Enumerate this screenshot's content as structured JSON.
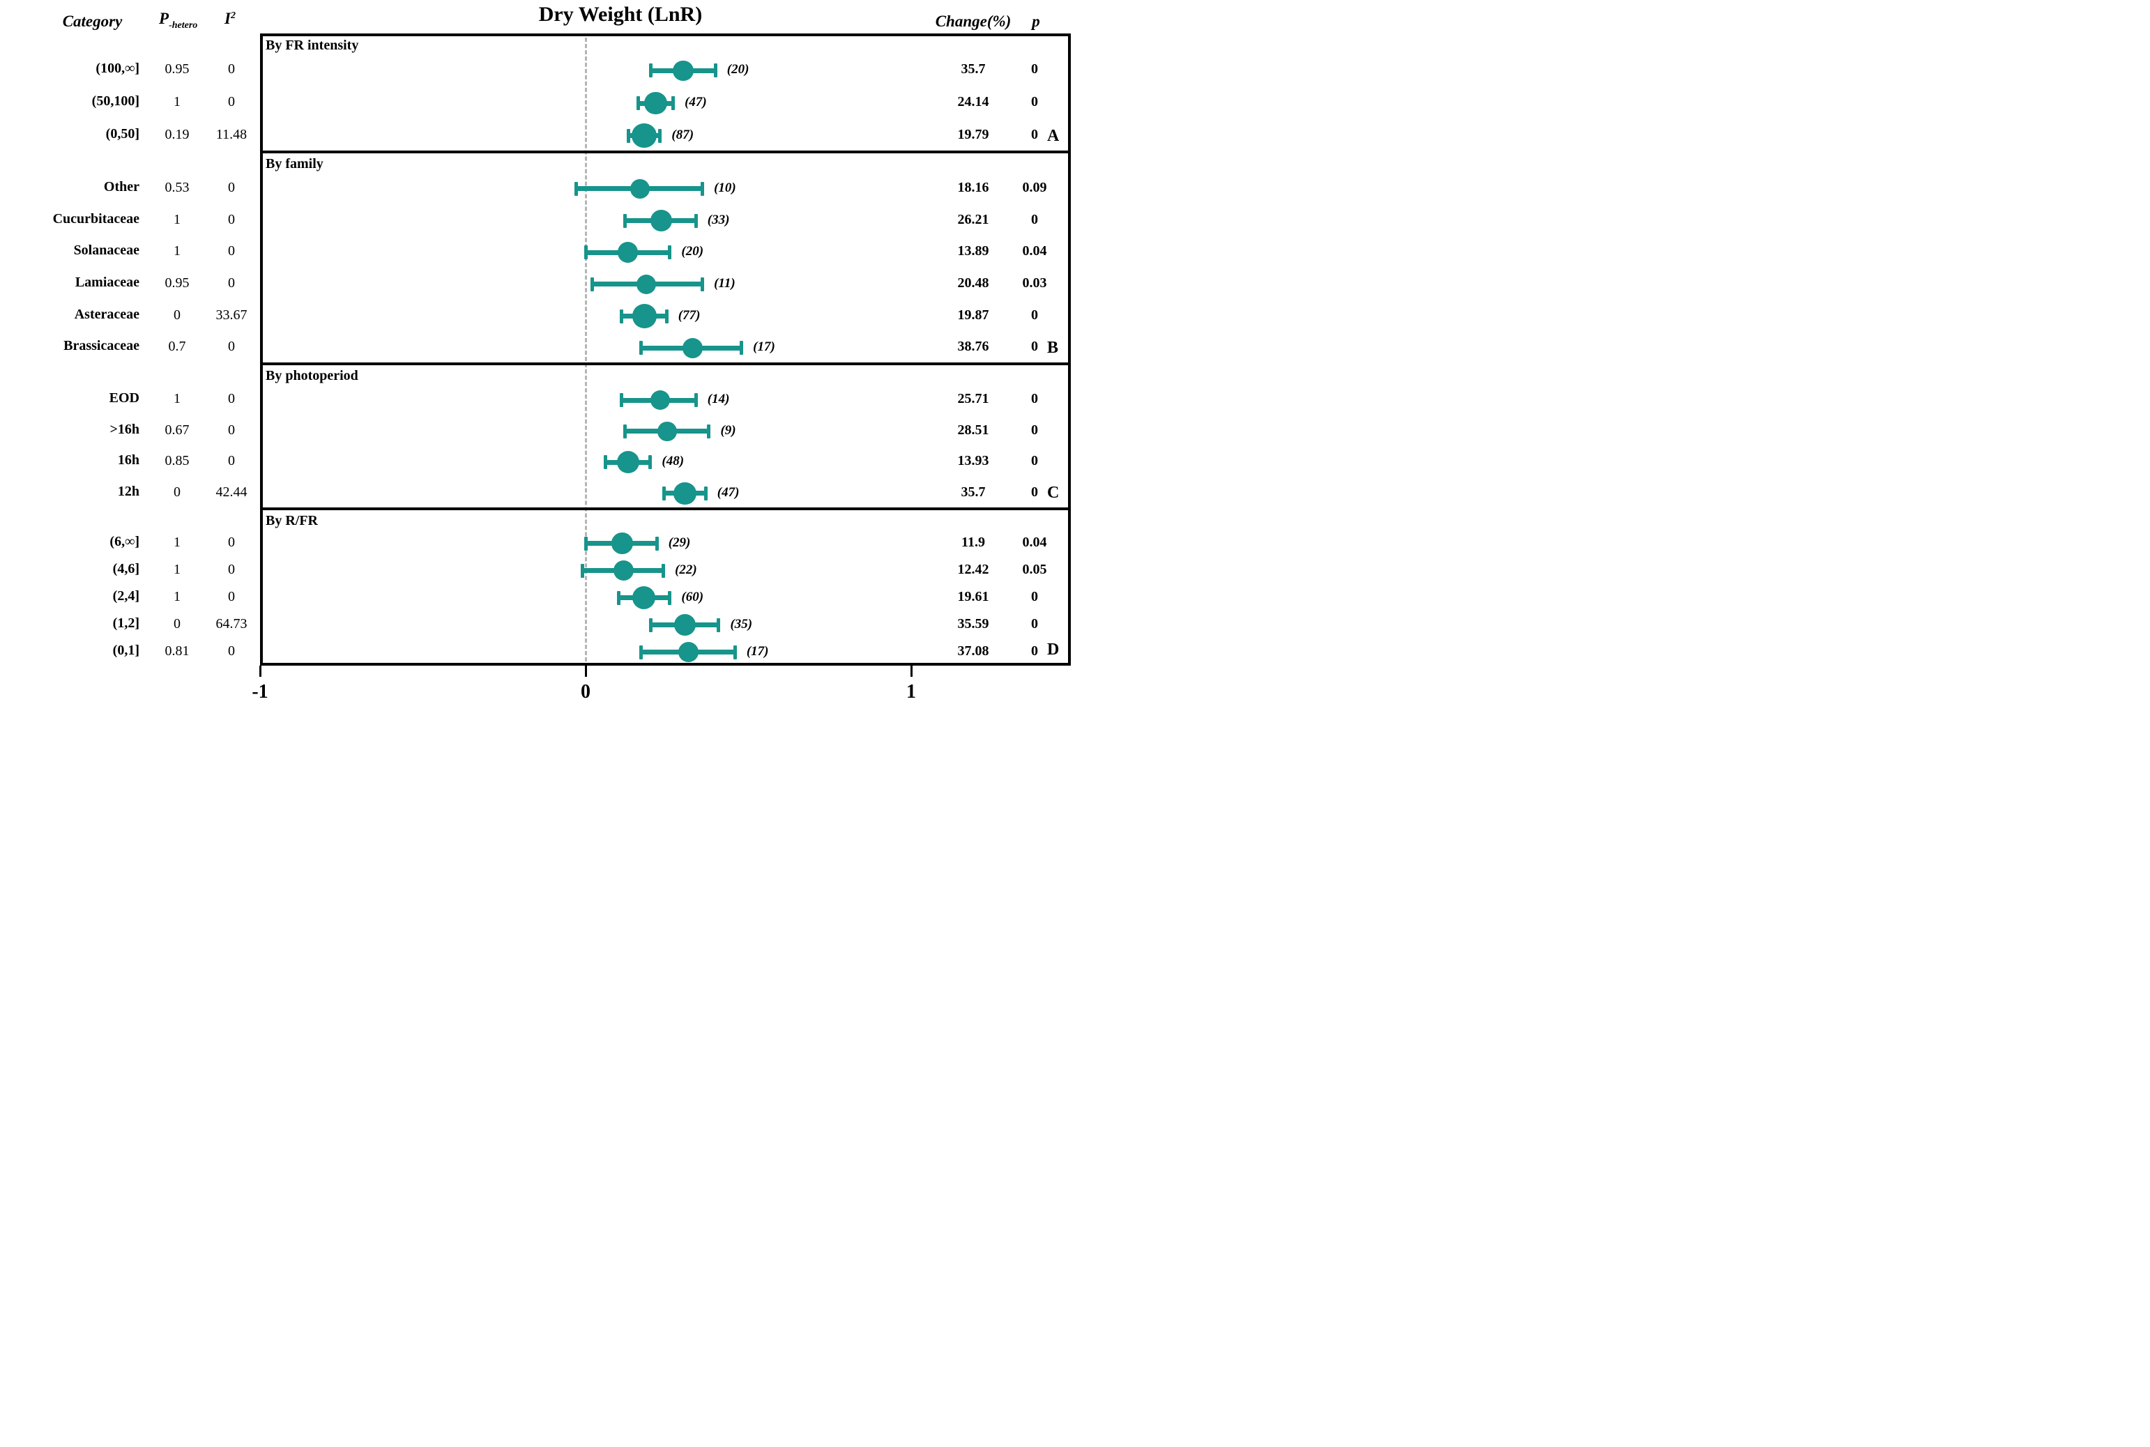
{
  "chart_data": {
    "type": "scatter",
    "variant": "forest-plot",
    "title": "Dry Weight (LnR)",
    "columns": {
      "category": "Category",
      "p_hetero_main": "P",
      "p_hetero_sub": "-hetero",
      "i2_main": "I",
      "i2_sup": "2",
      "change": "Change(%)",
      "p": "p"
    },
    "axis": {
      "xmin": -1,
      "xmax": 1.5,
      "tick_values": [
        -1,
        0,
        1
      ],
      "tick_labels": [
        "-1",
        "0",
        "1"
      ],
      "zero_reference_line": "dashed"
    },
    "marker_color": "#17948b",
    "zero_line_color": "#b5b5b5",
    "panels": [
      {
        "letter": "A",
        "section": "By FR intensity",
        "rows": [
          {
            "category": "(100,∞]",
            "p_hetero": "0.95",
            "i2": "0",
            "n": 20,
            "estimate": 0.3,
            "ci_lo": 0.2,
            "ci_hi": 0.4,
            "change": "35.7",
            "p": "0"
          },
          {
            "category": "(50,100]",
            "p_hetero": "1",
            "i2": "0",
            "n": 47,
            "estimate": 0.215,
            "ci_lo": 0.16,
            "ci_hi": 0.27,
            "change": "24.14",
            "p": "0"
          },
          {
            "category": "(0,50]",
            "p_hetero": "0.19",
            "i2": "11.48",
            "n": 87,
            "estimate": 0.18,
            "ci_lo": 0.13,
            "ci_hi": 0.23,
            "change": "19.79",
            "p": "0"
          }
        ]
      },
      {
        "letter": "B",
        "section": "By family",
        "rows": [
          {
            "category": "Other",
            "p_hetero": "0.53",
            "i2": "0",
            "n": 10,
            "estimate": 0.167,
            "ci_lo": -0.03,
            "ci_hi": 0.36,
            "change": "18.16",
            "p": "0.09"
          },
          {
            "category": "Cucurbitaceae",
            "p_hetero": "1",
            "i2": "0",
            "n": 33,
            "estimate": 0.233,
            "ci_lo": 0.12,
            "ci_hi": 0.34,
            "change": "26.21",
            "p": "0"
          },
          {
            "category": "Solanaceae",
            "p_hetero": "1",
            "i2": "0",
            "n": 20,
            "estimate": 0.13,
            "ci_lo": 0.0,
            "ci_hi": 0.26,
            "change": "13.89",
            "p": "0.04"
          },
          {
            "category": "Lamiaceae",
            "p_hetero": "0.95",
            "i2": "0",
            "n": 11,
            "estimate": 0.186,
            "ci_lo": 0.02,
            "ci_hi": 0.36,
            "change": "20.48",
            "p": "0.03"
          },
          {
            "category": "Asteraceae",
            "p_hetero": "0",
            "i2": "33.67",
            "n": 77,
            "estimate": 0.181,
            "ci_lo": 0.11,
            "ci_hi": 0.25,
            "change": "19.87",
            "p": "0"
          },
          {
            "category": "Brassicaceae",
            "p_hetero": "0.7",
            "i2": "0",
            "n": 17,
            "estimate": 0.328,
            "ci_lo": 0.17,
            "ci_hi": 0.48,
            "change": "38.76",
            "p": "0"
          }
        ]
      },
      {
        "letter": "C",
        "section": "By photoperiod",
        "rows": [
          {
            "category": "EOD",
            "p_hetero": "1",
            "i2": "0",
            "n": 14,
            "estimate": 0.229,
            "ci_lo": 0.11,
            "ci_hi": 0.34,
            "change": "25.71",
            "p": "0"
          },
          {
            "category": ">16h",
            "p_hetero": "0.67",
            "i2": "0",
            "n": 9,
            "estimate": 0.251,
            "ci_lo": 0.12,
            "ci_hi": 0.38,
            "change": "28.51",
            "p": "0"
          },
          {
            "category": "16h",
            "p_hetero": "0.85",
            "i2": "0",
            "n": 48,
            "estimate": 0.13,
            "ci_lo": 0.06,
            "ci_hi": 0.2,
            "change": "13.93",
            "p": "0"
          },
          {
            "category": "12h",
            "p_hetero": "0",
            "i2": "42.44",
            "n": 47,
            "estimate": 0.305,
            "ci_lo": 0.24,
            "ci_hi": 0.37,
            "change": "35.7",
            "p": "0"
          }
        ]
      },
      {
        "letter": "D",
        "section": "By R/FR",
        "rows": [
          {
            "category": "(6,∞]",
            "p_hetero": "1",
            "i2": "0",
            "n": 29,
            "estimate": 0.112,
            "ci_lo": 0.0,
            "ci_hi": 0.22,
            "change": "11.9",
            "p": "0.04"
          },
          {
            "category": "(4,6]",
            "p_hetero": "1",
            "i2": "0",
            "n": 22,
            "estimate": 0.117,
            "ci_lo": -0.01,
            "ci_hi": 0.24,
            "change": "12.42",
            "p": "0.05"
          },
          {
            "category": "(2,4]",
            "p_hetero": "1",
            "i2": "0",
            "n": 60,
            "estimate": 0.179,
            "ci_lo": 0.1,
            "ci_hi": 0.26,
            "change": "19.61",
            "p": "0"
          },
          {
            "category": "(1,2]",
            "p_hetero": "0",
            "i2": "64.73",
            "n": 35,
            "estimate": 0.305,
            "ci_lo": 0.2,
            "ci_hi": 0.41,
            "change": "35.59",
            "p": "0"
          },
          {
            "category": "(0,1]",
            "p_hetero": "0.81",
            "i2": "0",
            "n": 17,
            "estimate": 0.315,
            "ci_lo": 0.17,
            "ci_hi": 0.46,
            "change": "37.08",
            "p": "0"
          }
        ]
      }
    ]
  }
}
